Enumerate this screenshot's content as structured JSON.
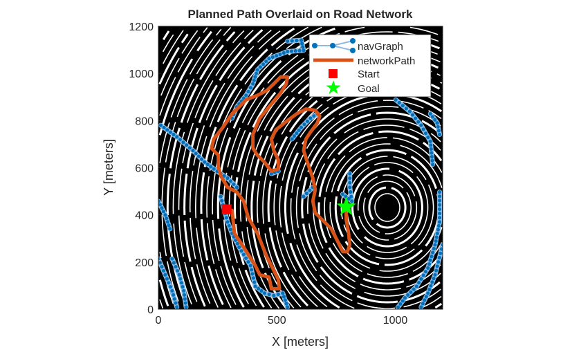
{
  "chart_data": {
    "type": "line",
    "title": "Planned Path Overlaid on Road Network",
    "xlabel": "X [meters]",
    "ylabel": "Y [meters]",
    "xlim": [
      0,
      1200
    ],
    "ylim": [
      0,
      1200
    ],
    "xticks": [
      0,
      500,
      1000
    ],
    "yticks": [
      0,
      200,
      400,
      600,
      800,
      1000,
      1200
    ],
    "grid": false,
    "legend_placement": "top-right",
    "background": "binary road/terrain occupancy image (black and white)",
    "colors": {
      "navGraph": "#0072BD",
      "navGraphEdge": "#8FB8DE",
      "networkPath": "#D95319",
      "start": "#FF0000",
      "goal": "#00FF00"
    },
    "legend": [
      "navGraph",
      "networkPath",
      "Start",
      "Goal"
    ],
    "series": [
      {
        "name": "navGraph",
        "kind": "graph",
        "edges_polylines": [
          [
            [
              545,
              1137
            ],
            [
              603,
              1141
            ],
            [
              613,
              1098
            ],
            [
              545,
              1093
            ],
            [
              467,
              1063
            ],
            [
              418,
              1015
            ],
            [
              399,
              956
            ],
            [
              370,
              907
            ],
            [
              331,
              858
            ],
            [
              311,
              810
            ]
          ],
          [
            [
              10,
              780
            ],
            [
              78,
              731
            ],
            [
              146,
              673
            ],
            [
              195,
              624
            ],
            [
              234,
              595
            ],
            [
              263,
              575
            ],
            [
              292,
              556
            ],
            [
              331,
              517
            ]
          ],
          [
            [
              263,
              478
            ],
            [
              292,
              370
            ],
            [
              311,
              322
            ],
            [
              341,
              263
            ],
            [
              389,
              185
            ],
            [
              409,
              97
            ],
            [
              448,
              68
            ],
            [
              487,
              58
            ],
            [
              525,
              68
            ],
            [
              545,
              9
            ]
          ],
          [
            [
              1002,
              888
            ],
            [
              1061,
              839
            ],
            [
              1109,
              780
            ],
            [
              1148,
              712
            ],
            [
              1158,
              614
            ]
          ],
          [
            [
              1148,
              829
            ],
            [
              1177,
              790
            ],
            [
              1187,
              741
            ]
          ],
          [
            [
              1187,
              497
            ],
            [
              1187,
              370
            ],
            [
              1168,
              273
            ],
            [
              1138,
              175
            ],
            [
              1090,
              97
            ],
            [
              1041,
              48
            ],
            [
              1012,
              9
            ]
          ],
          [
            [
              1200,
              273
            ],
            [
              1168,
              146
            ],
            [
              1138,
              68
            ],
            [
              1109,
              9
            ]
          ],
          [
            [
              564,
              722
            ],
            [
              603,
              771
            ],
            [
              642,
              810
            ],
            [
              671,
              829
            ]
          ],
          [
            [
              477,
              575
            ],
            [
              506,
              585
            ]
          ],
          [
            [
              613,
              478
            ],
            [
              652,
              517
            ]
          ],
          [
            [
              808,
              575
            ],
            [
              808,
              517
            ],
            [
              817,
              458
            ],
            [
              778,
              488
            ]
          ],
          [
            [
              0,
              458
            ],
            [
              29,
              400
            ],
            [
              49,
              341
            ]
          ],
          [
            [
              0,
              214
            ],
            [
              29,
              146
            ],
            [
              58,
              78
            ],
            [
              78,
              9
            ]
          ],
          [
            [
              58,
              214
            ],
            [
              88,
              146
            ],
            [
              107,
              78
            ],
            [
              117,
              9
            ]
          ]
        ]
      },
      {
        "name": "networkPath",
        "kind": "line",
        "points": [
          [
            287,
            424
          ],
          [
            311,
            419
          ],
          [
            321,
            322
          ],
          [
            360,
            263
          ],
          [
            409,
            185
          ],
          [
            428,
            146
          ],
          [
            467,
            136
          ],
          [
            477,
            87
          ],
          [
            511,
            87
          ],
          [
            506,
            126
          ],
          [
            487,
            165
          ],
          [
            457,
            224
          ],
          [
            418,
            322
          ],
          [
            379,
            390
          ],
          [
            360,
            458
          ],
          [
            331,
            497
          ],
          [
            292,
            517
          ],
          [
            263,
            566
          ],
          [
            253,
            605
          ],
          [
            253,
            653
          ],
          [
            224,
            683
          ],
          [
            234,
            722
          ],
          [
            272,
            771
          ],
          [
            311,
            829
          ],
          [
            341,
            858
          ],
          [
            370,
            888
          ],
          [
            418,
            907
          ],
          [
            457,
            927
          ],
          [
            487,
            956
          ],
          [
            516,
            985
          ],
          [
            545,
            985
          ],
          [
            540,
            956
          ],
          [
            516,
            917
          ],
          [
            467,
            858
          ],
          [
            428,
            810
          ],
          [
            399,
            741
          ],
          [
            399,
            683
          ],
          [
            418,
            653
          ],
          [
            448,
            624
          ],
          [
            477,
            585
          ],
          [
            506,
            595
          ],
          [
            506,
            634
          ],
          [
            487,
            673
          ],
          [
            477,
            722
          ],
          [
            496,
            761
          ],
          [
            545,
            800
          ],
          [
            584,
            829
          ],
          [
            623,
            849
          ],
          [
            662,
            844
          ],
          [
            681,
            819
          ],
          [
            671,
            790
          ],
          [
            642,
            751
          ],
          [
            623,
            722
          ],
          [
            613,
            673
          ],
          [
            632,
            614
          ],
          [
            652,
            556
          ],
          [
            662,
            507
          ],
          [
            652,
            458
          ],
          [
            662,
            409
          ],
          [
            691,
            380
          ],
          [
            730,
            341
          ],
          [
            759,
            283
          ],
          [
            778,
            244
          ],
          [
            798,
            244
          ],
          [
            808,
            273
          ],
          [
            803,
            322
          ],
          [
            793,
            380
          ],
          [
            793,
            429
          ]
        ]
      },
      {
        "name": "Start",
        "kind": "marker",
        "marker": "square",
        "point": [
          288,
          424
        ]
      },
      {
        "name": "Goal",
        "kind": "marker",
        "marker": "pentagram",
        "point": [
          793,
          434
        ]
      }
    ]
  }
}
